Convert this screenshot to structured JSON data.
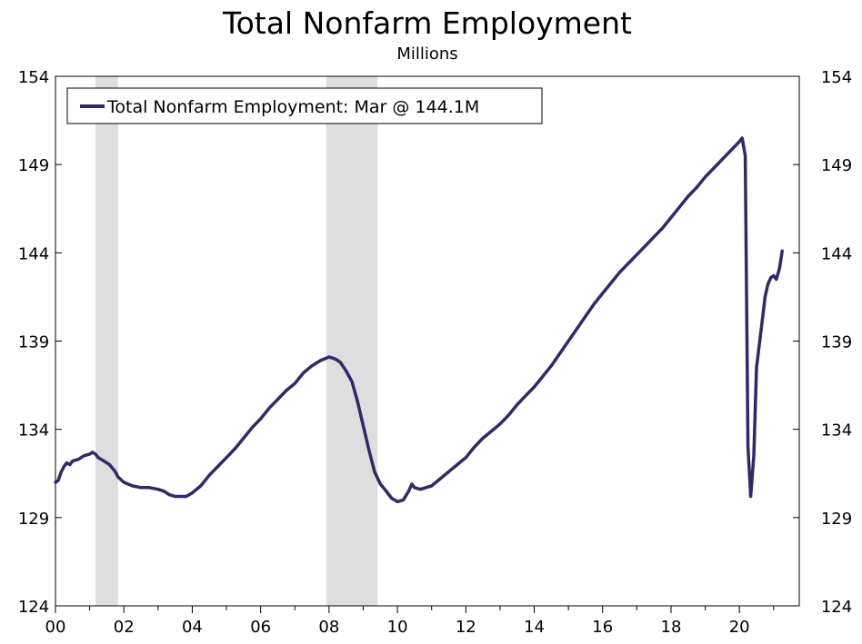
{
  "chart_data": {
    "type": "line",
    "title": "Total Nonfarm Employment",
    "subtitle": "Millions",
    "xlabel": "",
    "ylabel": "",
    "xlim": [
      2000,
      2021.75
    ],
    "ylim": [
      124,
      154
    ],
    "y_ticks": [
      124,
      129,
      134,
      139,
      144,
      149,
      154
    ],
    "x_ticks": [
      {
        "value": 2000,
        "label": "00"
      },
      {
        "value": 2002,
        "label": "02"
      },
      {
        "value": 2004,
        "label": "04"
      },
      {
        "value": 2006,
        "label": "06"
      },
      {
        "value": 2008,
        "label": "08"
      },
      {
        "value": 2010,
        "label": "10"
      },
      {
        "value": 2012,
        "label": "12"
      },
      {
        "value": 2014,
        "label": "14"
      },
      {
        "value": 2016,
        "label": "16"
      },
      {
        "value": 2018,
        "label": "18"
      },
      {
        "value": 2020,
        "label": "20"
      }
    ],
    "recessions": [
      {
        "start": 2001.17,
        "end": 2001.83
      },
      {
        "start": 2007.92,
        "end": 2009.42
      }
    ],
    "legend": {
      "position": "top-left",
      "label": "Total Nonfarm Employment: Mar @ 144.1M"
    },
    "series": [
      {
        "name": "Total Nonfarm Employment: Mar @ 144.1M",
        "color": "#2e2a68",
        "points": [
          [
            2000.0,
            131.0
          ],
          [
            2000.08,
            131.1
          ],
          [
            2000.17,
            131.6
          ],
          [
            2000.25,
            131.9
          ],
          [
            2000.33,
            132.1
          ],
          [
            2000.42,
            132.0
          ],
          [
            2000.5,
            132.2
          ],
          [
            2000.67,
            132.3
          ],
          [
            2000.83,
            132.5
          ],
          [
            2001.0,
            132.6
          ],
          [
            2001.08,
            132.7
          ],
          [
            2001.17,
            132.6
          ],
          [
            2001.25,
            132.4
          ],
          [
            2001.42,
            132.2
          ],
          [
            2001.58,
            132.0
          ],
          [
            2001.75,
            131.6
          ],
          [
            2001.83,
            131.3
          ],
          [
            2002.0,
            131.0
          ],
          [
            2002.25,
            130.8
          ],
          [
            2002.5,
            130.7
          ],
          [
            2002.75,
            130.7
          ],
          [
            2003.0,
            130.6
          ],
          [
            2003.17,
            130.5
          ],
          [
            2003.33,
            130.3
          ],
          [
            2003.5,
            130.2
          ],
          [
            2003.67,
            130.2
          ],
          [
            2003.83,
            130.2
          ],
          [
            2004.0,
            130.4
          ],
          [
            2004.25,
            130.8
          ],
          [
            2004.5,
            131.4
          ],
          [
            2004.75,
            131.9
          ],
          [
            2005.0,
            132.4
          ],
          [
            2005.25,
            132.9
          ],
          [
            2005.5,
            133.5
          ],
          [
            2005.75,
            134.1
          ],
          [
            2006.0,
            134.6
          ],
          [
            2006.25,
            135.2
          ],
          [
            2006.5,
            135.7
          ],
          [
            2006.75,
            136.2
          ],
          [
            2007.0,
            136.6
          ],
          [
            2007.25,
            137.2
          ],
          [
            2007.5,
            137.6
          ],
          [
            2007.75,
            137.9
          ],
          [
            2008.0,
            138.1
          ],
          [
            2008.17,
            138.0
          ],
          [
            2008.33,
            137.8
          ],
          [
            2008.5,
            137.3
          ],
          [
            2008.67,
            136.7
          ],
          [
            2008.83,
            135.6
          ],
          [
            2009.0,
            134.2
          ],
          [
            2009.17,
            132.8
          ],
          [
            2009.33,
            131.6
          ],
          [
            2009.5,
            130.9
          ],
          [
            2009.67,
            130.5
          ],
          [
            2009.83,
            130.1
          ],
          [
            2010.0,
            129.9
          ],
          [
            2010.17,
            130.0
          ],
          [
            2010.33,
            130.5
          ],
          [
            2010.42,
            130.9
          ],
          [
            2010.5,
            130.7
          ],
          [
            2010.67,
            130.6
          ],
          [
            2010.83,
            130.7
          ],
          [
            2011.0,
            130.8
          ],
          [
            2011.25,
            131.2
          ],
          [
            2011.5,
            131.6
          ],
          [
            2011.75,
            132.0
          ],
          [
            2012.0,
            132.4
          ],
          [
            2012.25,
            133.0
          ],
          [
            2012.5,
            133.5
          ],
          [
            2012.75,
            133.9
          ],
          [
            2013.0,
            134.3
          ],
          [
            2013.25,
            134.8
          ],
          [
            2013.5,
            135.4
          ],
          [
            2013.75,
            135.9
          ],
          [
            2014.0,
            136.4
          ],
          [
            2014.25,
            137.0
          ],
          [
            2014.5,
            137.6
          ],
          [
            2014.75,
            138.3
          ],
          [
            2015.0,
            139.0
          ],
          [
            2015.25,
            139.7
          ],
          [
            2015.5,
            140.4
          ],
          [
            2015.75,
            141.1
          ],
          [
            2016.0,
            141.7
          ],
          [
            2016.25,
            142.3
          ],
          [
            2016.5,
            142.9
          ],
          [
            2016.75,
            143.4
          ],
          [
            2017.0,
            143.9
          ],
          [
            2017.25,
            144.4
          ],
          [
            2017.5,
            144.9
          ],
          [
            2017.75,
            145.4
          ],
          [
            2018.0,
            146.0
          ],
          [
            2018.25,
            146.6
          ],
          [
            2018.5,
            147.2
          ],
          [
            2018.75,
            147.7
          ],
          [
            2019.0,
            148.3
          ],
          [
            2019.25,
            148.8
          ],
          [
            2019.5,
            149.3
          ],
          [
            2019.75,
            149.8
          ],
          [
            2020.0,
            150.3
          ],
          [
            2020.08,
            150.5
          ],
          [
            2020.17,
            149.5
          ],
          [
            2020.25,
            133.0
          ],
          [
            2020.33,
            130.2
          ],
          [
            2020.42,
            132.5
          ],
          [
            2020.5,
            137.5
          ],
          [
            2020.67,
            140.2
          ],
          [
            2020.75,
            141.5
          ],
          [
            2020.83,
            142.2
          ],
          [
            2020.92,
            142.6
          ],
          [
            2021.0,
            142.7
          ],
          [
            2021.08,
            142.5
          ],
          [
            2021.17,
            143.1
          ],
          [
            2021.25,
            144.1
          ]
        ]
      }
    ]
  }
}
